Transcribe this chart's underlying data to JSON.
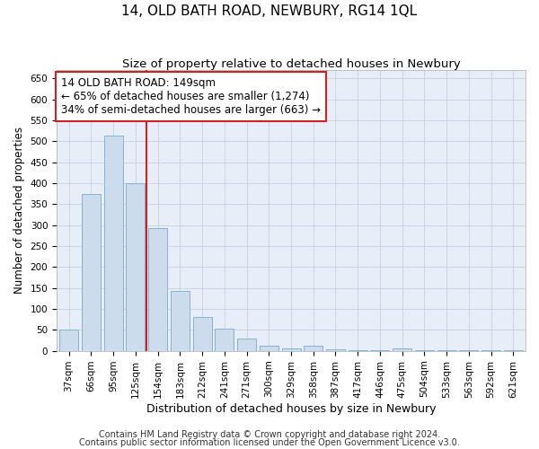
{
  "title": "14, OLD BATH ROAD, NEWBURY, RG14 1QL",
  "subtitle": "Size of property relative to detached houses in Newbury",
  "xlabel": "Distribution of detached houses by size in Newbury",
  "ylabel": "Number of detached properties",
  "categories": [
    "37sqm",
    "66sqm",
    "95sqm",
    "125sqm",
    "154sqm",
    "183sqm",
    "212sqm",
    "241sqm",
    "271sqm",
    "300sqm",
    "329sqm",
    "358sqm",
    "387sqm",
    "417sqm",
    "446sqm",
    "475sqm",
    "504sqm",
    "533sqm",
    "563sqm",
    "592sqm",
    "621sqm"
  ],
  "values": [
    50,
    375,
    513,
    400,
    293,
    143,
    80,
    53,
    30,
    12,
    5,
    12,
    3,
    1,
    1,
    5,
    1,
    1,
    1,
    1,
    1
  ],
  "bar_color": "#ccdcec",
  "bar_edge_color": "#7aaacc",
  "vline_color": "#cc2222",
  "vline_x_idx": 3.5,
  "annotation_line1": "14 OLD BATH ROAD: 149sqm",
  "annotation_line2": "← 65% of detached houses are smaller (1,274)",
  "annotation_line3": "34% of semi-detached houses are larger (663) →",
  "annotation_box_color": "#ffffff",
  "annotation_box_edge_color": "#cc2222",
  "ylim": [
    0,
    670
  ],
  "yticks": [
    0,
    50,
    100,
    150,
    200,
    250,
    300,
    350,
    400,
    450,
    500,
    550,
    600,
    650
  ],
  "grid_color": "#c8d0e0",
  "bg_color": "#e8eef8",
  "footer_line1": "Contains HM Land Registry data © Crown copyright and database right 2024.",
  "footer_line2": "Contains public sector information licensed under the Open Government Licence v3.0.",
  "title_fontsize": 11,
  "subtitle_fontsize": 9.5,
  "xlabel_fontsize": 9,
  "ylabel_fontsize": 8.5,
  "tick_fontsize": 7.5,
  "annot_fontsize": 8.5,
  "footer_fontsize": 7
}
